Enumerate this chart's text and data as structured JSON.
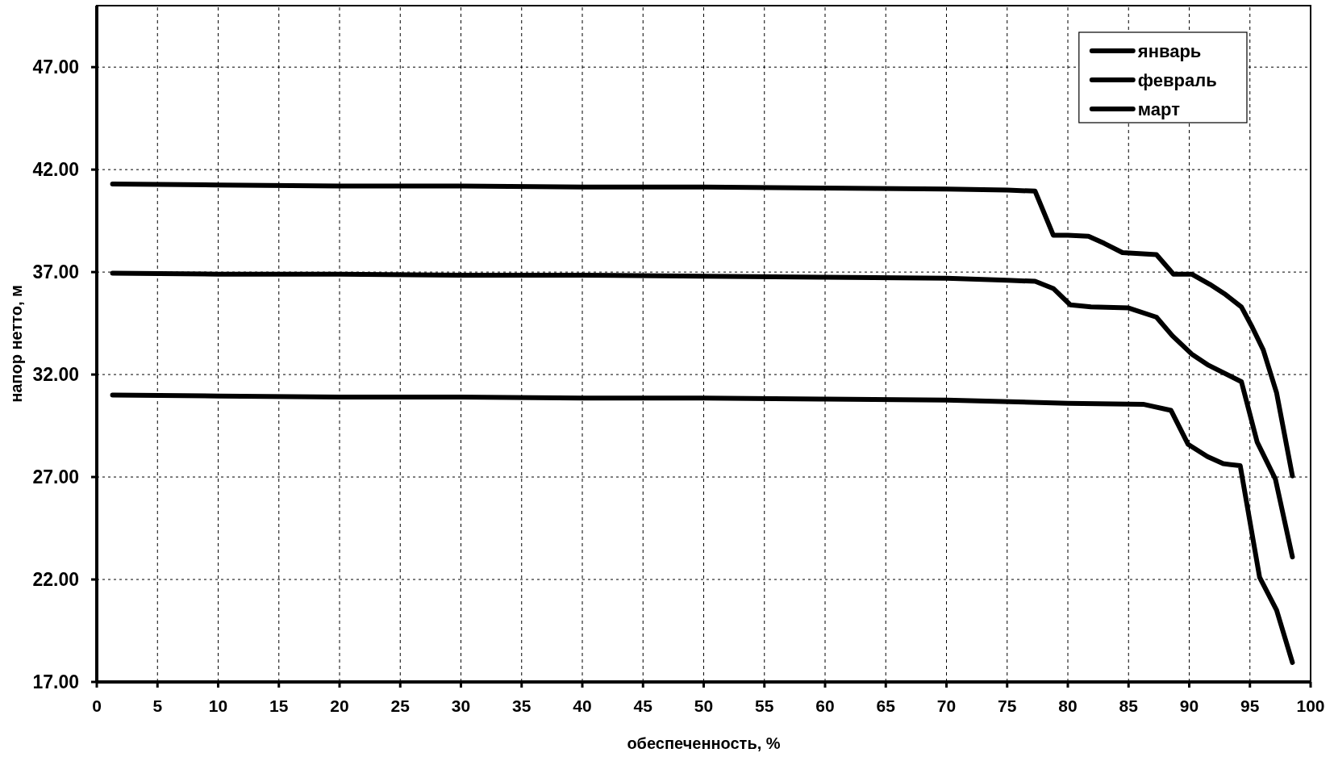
{
  "chart_data": {
    "type": "line",
    "xlabel": "обеспеченность, %",
    "ylabel": "напор нетто, м",
    "xlim": [
      0,
      100
    ],
    "ylim": [
      17,
      50
    ],
    "xticks": [
      0,
      5,
      10,
      15,
      20,
      25,
      30,
      35,
      40,
      45,
      50,
      55,
      60,
      65,
      70,
      75,
      80,
      85,
      90,
      95,
      100
    ],
    "yticks": [
      {
        "value": 17,
        "label": "17.00"
      },
      {
        "value": 22,
        "label": "22.00"
      },
      {
        "value": 27,
        "label": "27.00"
      },
      {
        "value": 32,
        "label": "32.00"
      },
      {
        "value": 37,
        "label": "37.00"
      },
      {
        "value": 42,
        "label": "42.00"
      },
      {
        "value": 47,
        "label": "47.00"
      }
    ],
    "grid": true,
    "legend": "top right",
    "line_style": "solid",
    "series": [
      {
        "name": "январь",
        "color": "#000000",
        "x": [
          1.3,
          10,
          20,
          30,
          40,
          50,
          60,
          70,
          75,
          77.3,
          78.8,
          80,
          81.7,
          83,
          84.5,
          87.3,
          88.7,
          90.2,
          91.7,
          93,
          94.3,
          95.2,
          96.1,
          97.2,
          98.5
        ],
        "values": [
          41.3,
          41.25,
          41.2,
          41.2,
          41.15,
          41.15,
          41.1,
          41.05,
          41.0,
          40.95,
          38.8,
          38.8,
          38.75,
          38.4,
          37.95,
          37.85,
          36.9,
          36.9,
          36.4,
          35.9,
          35.3,
          34.3,
          33.2,
          31.1,
          27.05
        ]
      },
      {
        "name": "февраль",
        "color": "#000000",
        "x": [
          1.3,
          10,
          20,
          30,
          40,
          50,
          60,
          70,
          75,
          77.3,
          78.8,
          80.2,
          81.9,
          85,
          87.3,
          88.6,
          90.2,
          91.6,
          94.3,
          95.6,
          97.1,
          98.5
        ],
        "values": [
          36.95,
          36.9,
          36.9,
          36.85,
          36.85,
          36.8,
          36.75,
          36.7,
          36.6,
          36.55,
          36.2,
          35.4,
          35.3,
          35.25,
          34.8,
          33.9,
          33.0,
          32.45,
          31.65,
          28.7,
          26.9,
          23.1
        ]
      },
      {
        "name": "март",
        "color": "#000000",
        "x": [
          1.3,
          10,
          20,
          30,
          40,
          50,
          60,
          70,
          80,
          86.2,
          88.5,
          89.9,
          91.5,
          92.8,
          94.2,
          95.8,
          97.2,
          98.5
        ],
        "values": [
          31.0,
          30.95,
          30.9,
          30.9,
          30.85,
          30.85,
          30.8,
          30.75,
          30.6,
          30.55,
          30.25,
          28.6,
          28.0,
          27.65,
          27.55,
          22.1,
          20.5,
          17.95
        ]
      }
    ]
  }
}
